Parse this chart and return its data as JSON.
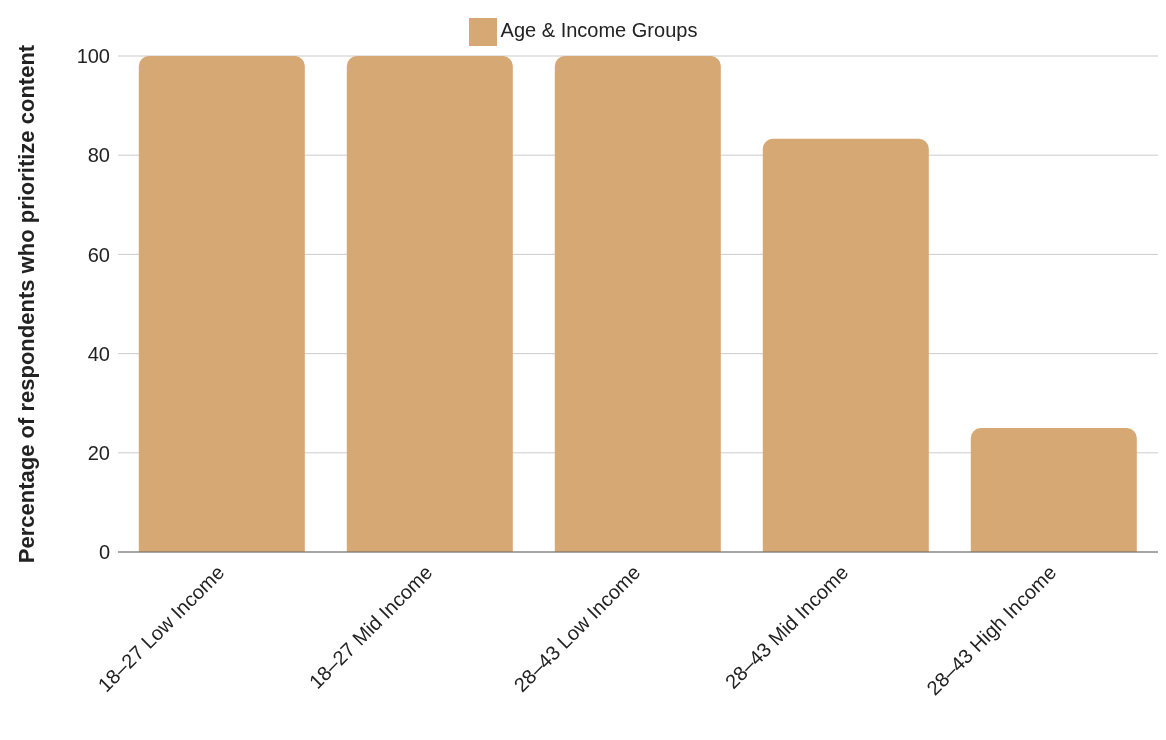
{
  "chart_data": {
    "type": "bar",
    "ylabel": "Percentage of respondents who prioritize content",
    "categories": [
      "18–27 Low Income",
      "18–27 Mid Income",
      "28–43 Low Income",
      "28–43 Mid Income",
      "28–43 High Income"
    ],
    "series": [
      {
        "name": "Age & Income Groups",
        "color": "#d6a874",
        "values": [
          100,
          100,
          100,
          83.3,
          25
        ]
      }
    ],
    "ylim": [
      0,
      100
    ],
    "yticks": [
      0,
      20,
      40,
      60,
      80,
      100
    ],
    "grid": "y",
    "legend": "top"
  }
}
